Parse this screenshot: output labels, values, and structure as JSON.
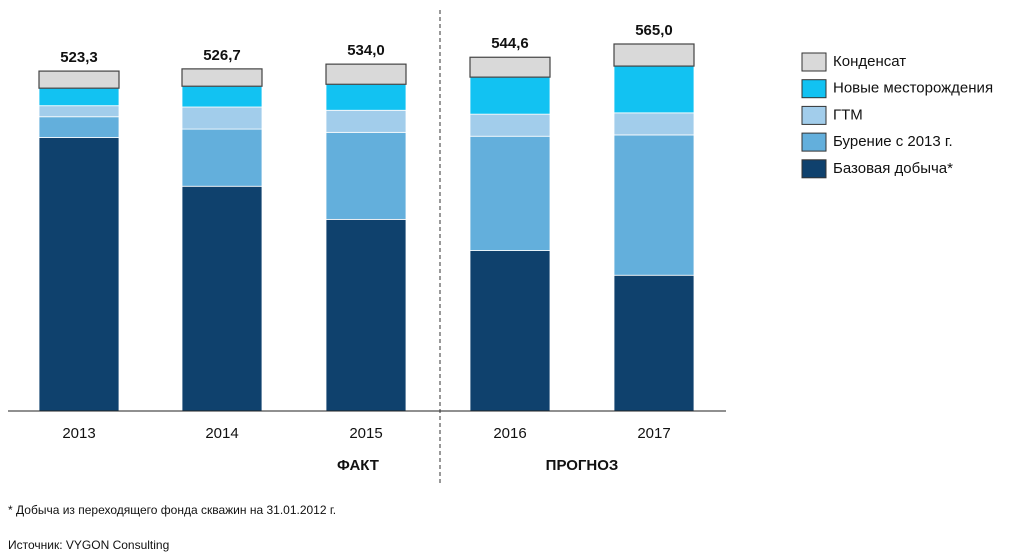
{
  "chart_data": {
    "type": "stacked-bar",
    "categories": [
      "2013",
      "2014",
      "2015",
      "2016",
      "2017"
    ],
    "series": [
      {
        "name": "Базовая добыча*",
        "color": "#0f416d",
        "values": [
          421,
          346,
          295,
          247,
          209
        ]
      },
      {
        "name": "Бурение с 2013 г.",
        "color": "#63afdc",
        "values": [
          32,
          88,
          134,
          176,
          216
        ]
      },
      {
        "name": "ГТМ",
        "color": "#a2cdeb",
        "values": [
          17,
          34,
          34,
          34,
          34
        ]
      },
      {
        "name": "Новые месторождения",
        "color": "#12c2f2",
        "values": [
          27,
          32,
          40,
          57,
          72
        ]
      },
      {
        "name": "Конденсат",
        "color": "#d9d9d9",
        "values": [
          26.3,
          26.7,
          31,
          30.6,
          34
        ]
      }
    ],
    "totals": [
      523.3,
      526.7,
      534.0,
      544.6,
      565.0
    ],
    "value_labels": [
      "523,3",
      "526,7",
      "534,0",
      "544,6",
      "565,0"
    ],
    "groups": [
      {
        "label": "ФАКТ",
        "from": 0,
        "to": 2
      },
      {
        "label": "ПРОГНОЗ",
        "from": 3,
        "to": 4
      }
    ],
    "footnote": "* Добыча из переходящего фонда скважин на 31.01.2012 г.",
    "source": "Источник: VYGON Consulting"
  }
}
